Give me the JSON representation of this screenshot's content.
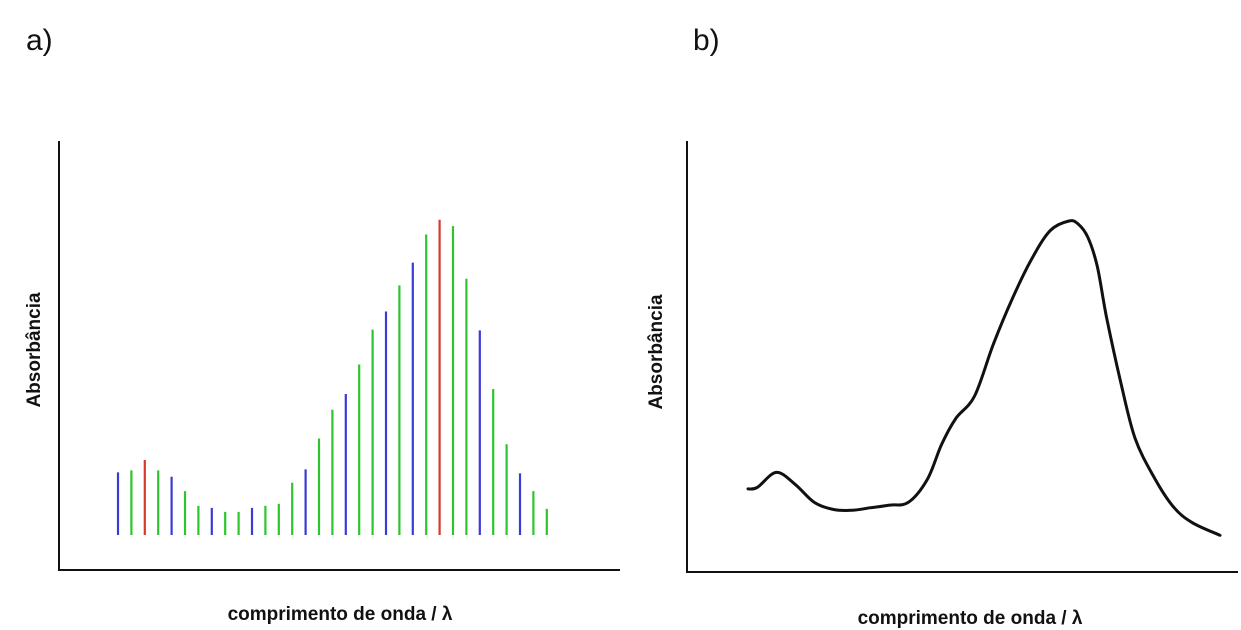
{
  "chart_data": [
    {
      "type": "bar",
      "panel_label": "a)",
      "xlabel": "comprimento de onda / λ",
      "ylabel": "Absorbância",
      "grid": false,
      "colors": {
        "blue": "#3a3ad6",
        "green": "#2ec42e",
        "red": "#d63a2a",
        "axis": "#111111"
      },
      "values": [
        0.187,
        0.193,
        0.224,
        0.193,
        0.174,
        0.131,
        0.087,
        0.081,
        0.069,
        0.069,
        0.081,
        0.087,
        0.093,
        0.156,
        0.196,
        0.288,
        0.374,
        0.421,
        0.509,
        0.613,
        0.667,
        0.745,
        0.813,
        0.897,
        0.941,
        0.922,
        0.765,
        0.611,
        0.436,
        0.271,
        0.184,
        0.131,
        0.078
      ],
      "bar_colors": [
        "blue",
        "green",
        "red",
        "green",
        "blue",
        "green",
        "green",
        "blue",
        "green",
        "green",
        "blue",
        "green",
        "green",
        "green",
        "blue",
        "green",
        "green",
        "blue",
        "green",
        "green",
        "blue",
        "green",
        "blue",
        "green",
        "red",
        "green",
        "green",
        "blue",
        "green",
        "green",
        "blue",
        "green",
        "green"
      ]
    },
    {
      "type": "line",
      "panel_label": "b)",
      "xlabel": "comprimento de onda / λ",
      "ylabel": "Absorbância",
      "grid": false,
      "line_color": "#111111",
      "x": [
        0,
        0.02,
        0.06,
        0.1,
        0.14,
        0.18,
        0.22,
        0.26,
        0.3,
        0.34,
        0.38,
        0.41,
        0.44,
        0.48,
        0.52,
        0.56,
        0.6,
        0.64,
        0.68,
        0.7,
        0.72,
        0.74,
        0.76,
        0.79,
        0.82,
        0.86,
        0.9,
        0.94,
        1.0
      ],
      "y": [
        0.173,
        0.178,
        0.224,
        0.187,
        0.132,
        0.11,
        0.107,
        0.115,
        0.123,
        0.132,
        0.203,
        0.31,
        0.39,
        0.46,
        0.62,
        0.76,
        0.88,
        0.97,
        1.0,
        0.99,
        0.95,
        0.86,
        0.7,
        0.5,
        0.33,
        0.21,
        0.12,
        0.07,
        0.03
      ]
    }
  ]
}
